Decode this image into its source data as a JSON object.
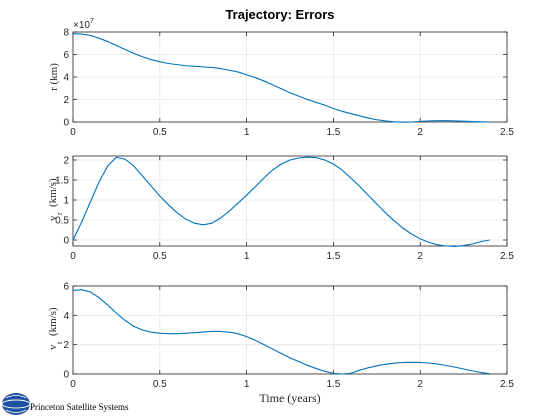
{
  "figure_title": "Trajectory: Errors",
  "watermark": "Princeton Satellite Systems",
  "colors": {
    "series": "#0072bd",
    "grid": "#e6e6e6",
    "axis": "#262626"
  },
  "chart_data": [
    {
      "type": "line",
      "title": "Trajectory: Errors",
      "ylabel": "r (km)",
      "xlabel": "",
      "multiplier_label": "×10",
      "multiplier_exponent": "7",
      "xlim": [
        0,
        2.5
      ],
      "ylim": [
        0,
        8
      ],
      "x_ticks": [
        "0",
        "0.5",
        "1",
        "1.5",
        "2",
        "2.5"
      ],
      "y_ticks": [
        "0",
        "2",
        "4",
        "6",
        "8"
      ],
      "grid": true,
      "x": [
        0,
        0.05,
        0.1,
        0.15,
        0.2,
        0.25,
        0.3,
        0.35,
        0.4,
        0.45,
        0.5,
        0.55,
        0.6,
        0.65,
        0.7,
        0.75,
        0.8,
        0.85,
        0.9,
        0.95,
        1.0,
        1.05,
        1.1,
        1.15,
        1.2,
        1.25,
        1.3,
        1.35,
        1.4,
        1.45,
        1.5,
        1.55,
        1.6,
        1.65,
        1.7,
        1.75,
        1.8,
        1.85,
        1.9,
        1.95,
        2.0,
        2.05,
        2.1,
        2.15,
        2.2,
        2.25,
        2.3,
        2.35,
        2.4
      ],
      "y": [
        7.85,
        7.82,
        7.7,
        7.45,
        7.15,
        6.8,
        6.45,
        6.1,
        5.8,
        5.55,
        5.35,
        5.2,
        5.1,
        5.0,
        4.95,
        4.9,
        4.85,
        4.75,
        4.6,
        4.45,
        4.2,
        3.95,
        3.65,
        3.3,
        2.95,
        2.6,
        2.3,
        2.0,
        1.75,
        1.5,
        1.2,
        0.95,
        0.75,
        0.55,
        0.35,
        0.2,
        0.1,
        0.02,
        -0.02,
        0.0,
        0.05,
        0.1,
        0.12,
        0.12,
        0.1,
        0.07,
        0.04,
        0.02,
        0.0
      ]
    },
    {
      "type": "line",
      "ylabel": "v",
      "ylabel_sub": "r",
      "ylabel_unit": "(km/s)",
      "xlabel": "",
      "xlim": [
        0,
        2.5
      ],
      "ylim": [
        -0.15,
        2.1
      ],
      "x_ticks": [
        "0",
        "0.5",
        "1",
        "1.5",
        "2",
        "2.5"
      ],
      "y_ticks": [
        "0",
        "0.5",
        "1",
        "1.5",
        "2"
      ],
      "grid": true,
      "x": [
        0,
        0.05,
        0.1,
        0.15,
        0.2,
        0.25,
        0.3,
        0.35,
        0.4,
        0.45,
        0.5,
        0.55,
        0.6,
        0.65,
        0.7,
        0.75,
        0.8,
        0.85,
        0.9,
        0.95,
        1.0,
        1.05,
        1.1,
        1.15,
        1.2,
        1.25,
        1.3,
        1.35,
        1.4,
        1.45,
        1.5,
        1.55,
        1.6,
        1.65,
        1.7,
        1.75,
        1.8,
        1.85,
        1.9,
        1.95,
        2.0,
        2.05,
        2.1,
        2.15,
        2.2,
        2.25,
        2.3,
        2.35,
        2.4
      ],
      "y": [
        0.0,
        0.45,
        0.95,
        1.45,
        1.85,
        2.07,
        2.02,
        1.85,
        1.6,
        1.35,
        1.1,
        0.88,
        0.68,
        0.52,
        0.42,
        0.38,
        0.42,
        0.55,
        0.72,
        0.92,
        1.12,
        1.33,
        1.55,
        1.75,
        1.9,
        2.0,
        2.05,
        2.07,
        2.06,
        2.0,
        1.9,
        1.75,
        1.55,
        1.35,
        1.12,
        0.9,
        0.68,
        0.48,
        0.3,
        0.15,
        0.03,
        -0.06,
        -0.12,
        -0.15,
        -0.16,
        -0.14,
        -0.1,
        -0.04,
        0.0
      ]
    },
    {
      "type": "line",
      "ylabel": "v",
      "ylabel_sub": "t",
      "ylabel_unit": "(km/s)",
      "xlabel": "Time (years)",
      "xlim": [
        0,
        2.5
      ],
      "ylim": [
        0,
        6
      ],
      "x_ticks": [
        "0",
        "0.5",
        "1",
        "1.5",
        "2",
        "2.5"
      ],
      "y_ticks": [
        "0",
        "2",
        "4",
        "6"
      ],
      "grid": true,
      "x": [
        0,
        0.05,
        0.1,
        0.15,
        0.2,
        0.25,
        0.3,
        0.35,
        0.4,
        0.45,
        0.5,
        0.55,
        0.6,
        0.65,
        0.7,
        0.75,
        0.8,
        0.85,
        0.9,
        0.95,
        1.0,
        1.05,
        1.1,
        1.15,
        1.2,
        1.25,
        1.3,
        1.35,
        1.4,
        1.45,
        1.5,
        1.55,
        1.6,
        1.65,
        1.7,
        1.75,
        1.8,
        1.85,
        1.9,
        1.95,
        2.0,
        2.05,
        2.1,
        2.15,
        2.2,
        2.25,
        2.3,
        2.35,
        2.4
      ],
      "y": [
        5.7,
        5.75,
        5.6,
        5.2,
        4.7,
        4.15,
        3.65,
        3.25,
        3.0,
        2.85,
        2.78,
        2.75,
        2.75,
        2.78,
        2.82,
        2.87,
        2.9,
        2.9,
        2.85,
        2.75,
        2.55,
        2.3,
        2.0,
        1.7,
        1.4,
        1.1,
        0.85,
        0.6,
        0.38,
        0.18,
        0.05,
        0.0,
        0.05,
        0.25,
        0.42,
        0.56,
        0.67,
        0.74,
        0.79,
        0.8,
        0.79,
        0.75,
        0.68,
        0.58,
        0.47,
        0.34,
        0.22,
        0.1,
        0.02
      ]
    }
  ]
}
